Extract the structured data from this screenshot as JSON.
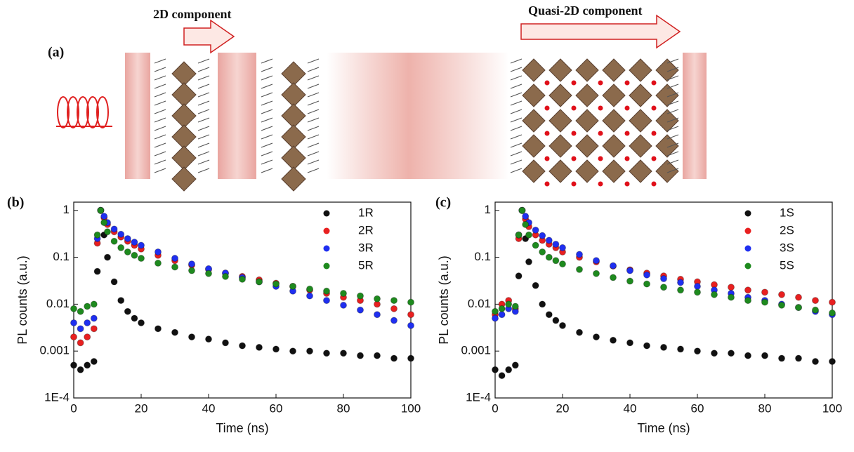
{
  "diagram": {
    "panel_label": "(a)",
    "arrows": [
      "2D component",
      "Quasi-2D component"
    ]
  },
  "chart_data": [
    {
      "type": "scatter",
      "label": "(b)",
      "x_label": "Time (ns)",
      "y_label": "PL counts (a.u.)",
      "log_y": true,
      "legend": "upper right",
      "xlim": [
        0,
        100
      ],
      "xticks": [
        0,
        20,
        40,
        60,
        80,
        100
      ],
      "ylim": [
        0.0001,
        1.5
      ],
      "yticks": [
        {
          "value": 0.0001,
          "label": "1E-4"
        },
        0.001,
        0.01,
        0.1,
        1
      ],
      "x": [
        0,
        2,
        4,
        6,
        7,
        8,
        9,
        10,
        12,
        14,
        16,
        18,
        20,
        25,
        30,
        35,
        40,
        45,
        50,
        55,
        60,
        65,
        70,
        75,
        80,
        85,
        90,
        95,
        100
      ],
      "series": [
        {
          "name": "1R",
          "color": "#111111",
          "values": [
            0.0005,
            0.0004,
            0.0005,
            0.0006,
            0.05,
            1,
            0.3,
            0.1,
            0.03,
            0.012,
            0.007,
            0.005,
            0.004,
            0.003,
            0.0025,
            0.002,
            0.0018,
            0.0015,
            0.0013,
            0.0012,
            0.0011,
            0.001,
            0.001,
            0.0009,
            0.0009,
            0.0008,
            0.0008,
            0.0007,
            0.0007
          ]
        },
        {
          "name": "2R",
          "color": "#e82020",
          "values": [
            0.002,
            0.0015,
            0.002,
            0.003,
            0.2,
            1,
            0.7,
            0.5,
            0.35,
            0.27,
            0.22,
            0.18,
            0.15,
            0.11,
            0.085,
            0.068,
            0.055,
            0.046,
            0.039,
            0.033,
            0.028,
            0.024,
            0.02,
            0.017,
            0.014,
            0.012,
            0.01,
            0.008,
            0.006
          ]
        },
        {
          "name": "3R",
          "color": "#1f2ff0",
          "values": [
            0.004,
            0.003,
            0.004,
            0.005,
            0.25,
            1,
            0.75,
            0.55,
            0.4,
            0.31,
            0.25,
            0.21,
            0.18,
            0.13,
            0.095,
            0.072,
            0.057,
            0.046,
            0.037,
            0.03,
            0.024,
            0.019,
            0.015,
            0.012,
            0.0095,
            0.0075,
            0.006,
            0.0045,
            0.0035
          ]
        },
        {
          "name": "5R",
          "color": "#1e8a1e",
          "values": [
            0.008,
            0.007,
            0.009,
            0.01,
            0.3,
            1,
            0.55,
            0.35,
            0.22,
            0.16,
            0.13,
            0.11,
            0.095,
            0.075,
            0.062,
            0.052,
            0.045,
            0.039,
            0.034,
            0.03,
            0.027,
            0.024,
            0.021,
            0.019,
            0.017,
            0.015,
            0.013,
            0.012,
            0.011
          ]
        }
      ]
    },
    {
      "type": "scatter",
      "label": "(c)",
      "x_label": "Time (ns)",
      "y_label": "PL counts (a.u.)",
      "log_y": true,
      "legend": "upper right",
      "xlim": [
        0,
        100
      ],
      "xticks": [
        0,
        20,
        40,
        60,
        80,
        100
      ],
      "ylim": [
        0.0001,
        1.5
      ],
      "yticks": [
        {
          "value": 0.0001,
          "label": "1E-4"
        },
        0.001,
        0.01,
        0.1,
        1
      ],
      "x": [
        0,
        2,
        4,
        6,
        7,
        8,
        9,
        10,
        12,
        14,
        16,
        18,
        20,
        25,
        30,
        35,
        40,
        45,
        50,
        55,
        60,
        65,
        70,
        75,
        80,
        85,
        90,
        95,
        100
      ],
      "series": [
        {
          "name": "1S",
          "color": "#111111",
          "values": [
            0.0004,
            0.0003,
            0.0004,
            0.0005,
            0.04,
            1,
            0.25,
            0.08,
            0.025,
            0.01,
            0.006,
            0.0045,
            0.0035,
            0.0025,
            0.002,
            0.0017,
            0.0015,
            0.0013,
            0.0012,
            0.0011,
            0.001,
            0.0009,
            0.0009,
            0.0008,
            0.0008,
            0.0007,
            0.0007,
            0.0006,
            0.0006
          ]
        },
        {
          "name": "2S",
          "color": "#e82020",
          "values": [
            0.006,
            0.01,
            0.012,
            0.008,
            0.25,
            1,
            0.65,
            0.45,
            0.3,
            0.23,
            0.19,
            0.16,
            0.13,
            0.1,
            0.08,
            0.065,
            0.054,
            0.046,
            0.04,
            0.034,
            0.03,
            0.026,
            0.023,
            0.02,
            0.018,
            0.016,
            0.014,
            0.012,
            0.011
          ]
        },
        {
          "name": "3S",
          "color": "#1f2ff0",
          "values": [
            0.005,
            0.006,
            0.008,
            0.007,
            0.3,
            1,
            0.75,
            0.55,
            0.38,
            0.29,
            0.23,
            0.19,
            0.16,
            0.115,
            0.085,
            0.066,
            0.052,
            0.042,
            0.035,
            0.029,
            0.024,
            0.02,
            0.017,
            0.014,
            0.012,
            0.01,
            0.0085,
            0.007,
            0.006
          ]
        },
        {
          "name": "5S",
          "color": "#1e8a1e",
          "values": [
            0.007,
            0.008,
            0.01,
            0.009,
            0.3,
            1,
            0.5,
            0.3,
            0.18,
            0.13,
            0.1,
            0.085,
            0.072,
            0.055,
            0.045,
            0.037,
            0.031,
            0.027,
            0.023,
            0.02,
            0.018,
            0.016,
            0.014,
            0.012,
            0.011,
            0.0095,
            0.0085,
            0.0075,
            0.0065
          ]
        }
      ]
    }
  ]
}
